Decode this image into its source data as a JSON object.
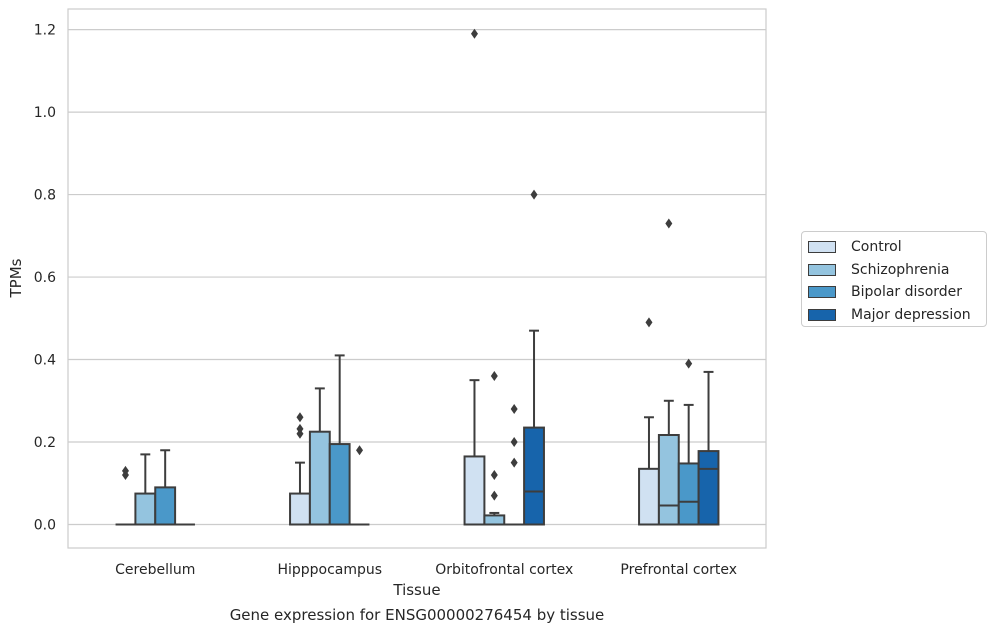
{
  "chart_data": {
    "type": "box",
    "xlabel": "Tissue",
    "ylabel": "TPMs",
    "caption": "Gene expression for ENSG00000276454 by tissue",
    "ylim": [
      -0.057,
      1.25
    ],
    "yticks": [
      "0.0",
      "0.2",
      "0.4",
      "0.6",
      "0.8",
      "1.0",
      "1.2"
    ],
    "ytick_values": [
      0.0,
      0.2,
      0.4,
      0.6,
      0.8,
      1.0,
      1.2
    ],
    "grid": true,
    "legend_position": "right-center",
    "categories": [
      "Cerebellum",
      "Hipppocampus",
      "Orbitofrontal cortex",
      "Prefrontal cortex"
    ],
    "series": [
      {
        "name": "Control",
        "color": "#d0e1f2",
        "boxes": [
          {
            "q1": 0.0,
            "median": 0.0,
            "q3": 0.0,
            "whislo": 0.0,
            "whishi": 0.0,
            "fliers": [
              0.12,
              0.13
            ]
          },
          {
            "q1": 0.0,
            "median": 0.0,
            "q3": 0.075,
            "whislo": 0.0,
            "whishi": 0.15,
            "fliers": [
              0.22,
              0.232,
              0.26
            ]
          },
          {
            "q1": 0.0,
            "median": 0.0,
            "q3": 0.165,
            "whislo": 0.0,
            "whishi": 0.35,
            "fliers": [
              1.19
            ]
          },
          {
            "q1": 0.0,
            "median": 0.0,
            "q3": 0.135,
            "whislo": 0.0,
            "whishi": 0.26,
            "fliers": [
              0.49
            ]
          }
        ]
      },
      {
        "name": "Schizophrenia",
        "color": "#94c4df",
        "boxes": [
          {
            "q1": 0.0,
            "median": 0.0,
            "q3": 0.075,
            "whislo": 0.0,
            "whishi": 0.17,
            "fliers": []
          },
          {
            "q1": 0.0,
            "median": 0.0,
            "q3": 0.225,
            "whislo": 0.0,
            "whishi": 0.33,
            "fliers": []
          },
          {
            "q1": 0.0,
            "median": 0.0,
            "q3": 0.022,
            "whislo": 0.0,
            "whishi": 0.028,
            "fliers": [
              0.07,
              0.12,
              0.36
            ]
          },
          {
            "q1": 0.0,
            "median": 0.046,
            "q3": 0.217,
            "whislo": 0.0,
            "whishi": 0.3,
            "fliers": [
              0.73
            ]
          }
        ]
      },
      {
        "name": "Bipolar disorder",
        "color": "#4a98c9",
        "boxes": [
          {
            "q1": 0.0,
            "median": 0.0,
            "q3": 0.09,
            "whislo": 0.0,
            "whishi": 0.18,
            "fliers": []
          },
          {
            "q1": 0.0,
            "median": 0.0,
            "q3": 0.195,
            "whislo": 0.0,
            "whishi": 0.41,
            "fliers": []
          },
          {
            "q1": 0.0,
            "median": 0.0,
            "q3": 0.0,
            "whislo": 0.0,
            "whishi": 0.0,
            "fliers": [
              0.15,
              0.2,
              0.28
            ]
          },
          {
            "q1": 0.0,
            "median": 0.055,
            "q3": 0.148,
            "whislo": 0.0,
            "whishi": 0.29,
            "fliers": [
              0.39
            ]
          }
        ]
      },
      {
        "name": "Major depression",
        "color": "#1764ab",
        "boxes": [
          {
            "q1": 0.0,
            "median": 0.0,
            "q3": 0.0,
            "whislo": 0.0,
            "whishi": 0.0,
            "fliers": []
          },
          {
            "q1": 0.0,
            "median": 0.0,
            "q3": 0.0,
            "whislo": 0.0,
            "whishi": 0.0,
            "fliers": [
              0.18
            ]
          },
          {
            "q1": 0.0,
            "median": 0.08,
            "q3": 0.235,
            "whislo": 0.0,
            "whishi": 0.47,
            "fliers": [
              0.8
            ]
          },
          {
            "q1": 0.0,
            "median": 0.135,
            "q3": 0.178,
            "whislo": 0.0,
            "whishi": 0.37,
            "fliers": []
          }
        ]
      }
    ]
  }
}
